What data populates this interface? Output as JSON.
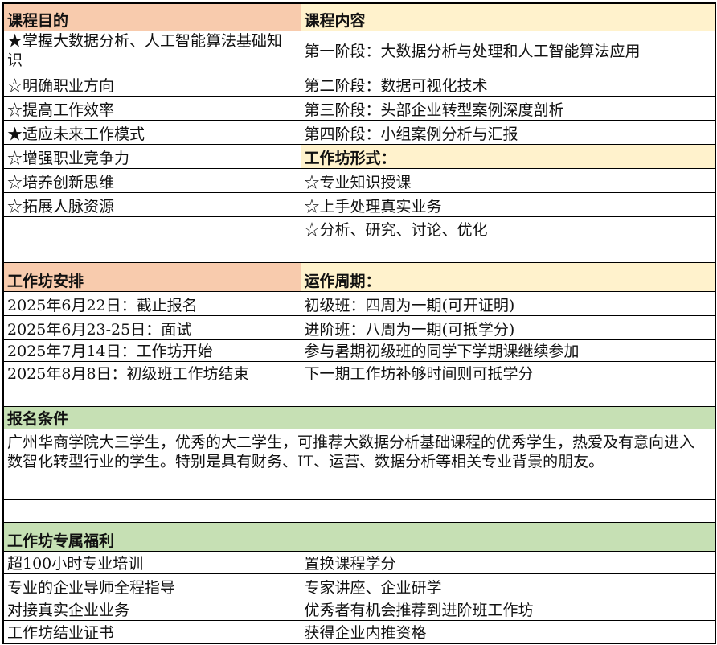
{
  "course": {
    "goals_header": "课程目的",
    "content_header": "课程内容",
    "goals": [
      "★掌握大数据分析、人工智能算法基础知识",
      "☆明确职业方向",
      "☆提高工作效率",
      "★适应未来工作模式",
      "☆增强职业竞争力",
      "☆培养创新思维",
      "☆拓展人脉资源"
    ],
    "stages": [
      "第一阶段：大数据分析与处理和人工智能算法应用",
      "第二阶段：数据可视化技术",
      "第三阶段：头部企业转型案例深度剖析",
      "第四阶段：小组案例分析与汇报"
    ],
    "format_header": "工作坊形式：",
    "formats": [
      "☆专业知识授课",
      "☆上手处理真实业务",
      "☆分析、研究、讨论、优化"
    ]
  },
  "schedule": {
    "header": "工作坊安排",
    "items": [
      "2025年6月22日：截止报名",
      "2025年6月23-25日：面试",
      "2025年7月14日：工作坊开始",
      "2025年8月8日：初级班工作坊结束"
    ]
  },
  "cycle": {
    "header": "运作周期：",
    "items": [
      "初级班：四周为一期(可开证明)",
      "进阶班：八周为一期(可抵学分)",
      "参与暑期初级班的同学下学期课继续参加",
      "下一期工作坊补够时间则可抵学分"
    ]
  },
  "requirements": {
    "header": "报名条件",
    "text": "广州华商学院大三学生，优秀的大二学生，可推荐大数据分析基础课程的优秀学生，热爱及有意向进入数智化转型行业的学生。特别是具有财务、IT、运营、数据分析等相关专业背景的朋友。"
  },
  "benefits": {
    "header": "工作坊专属福利",
    "left": [
      "超100小时专业培训",
      "专业的企业导师全程指导",
      "对接真实企业业务",
      "工作坊结业证书"
    ],
    "right": [
      "置换课程学分",
      "专家讲座、企业研学",
      "优秀者有机会推荐到进阶班工作坊",
      "获得企业内推资格"
    ]
  },
  "colors": {
    "peach": "#f8cbad",
    "yellow": "#fff2cc",
    "green": "#c6e0b4"
  }
}
